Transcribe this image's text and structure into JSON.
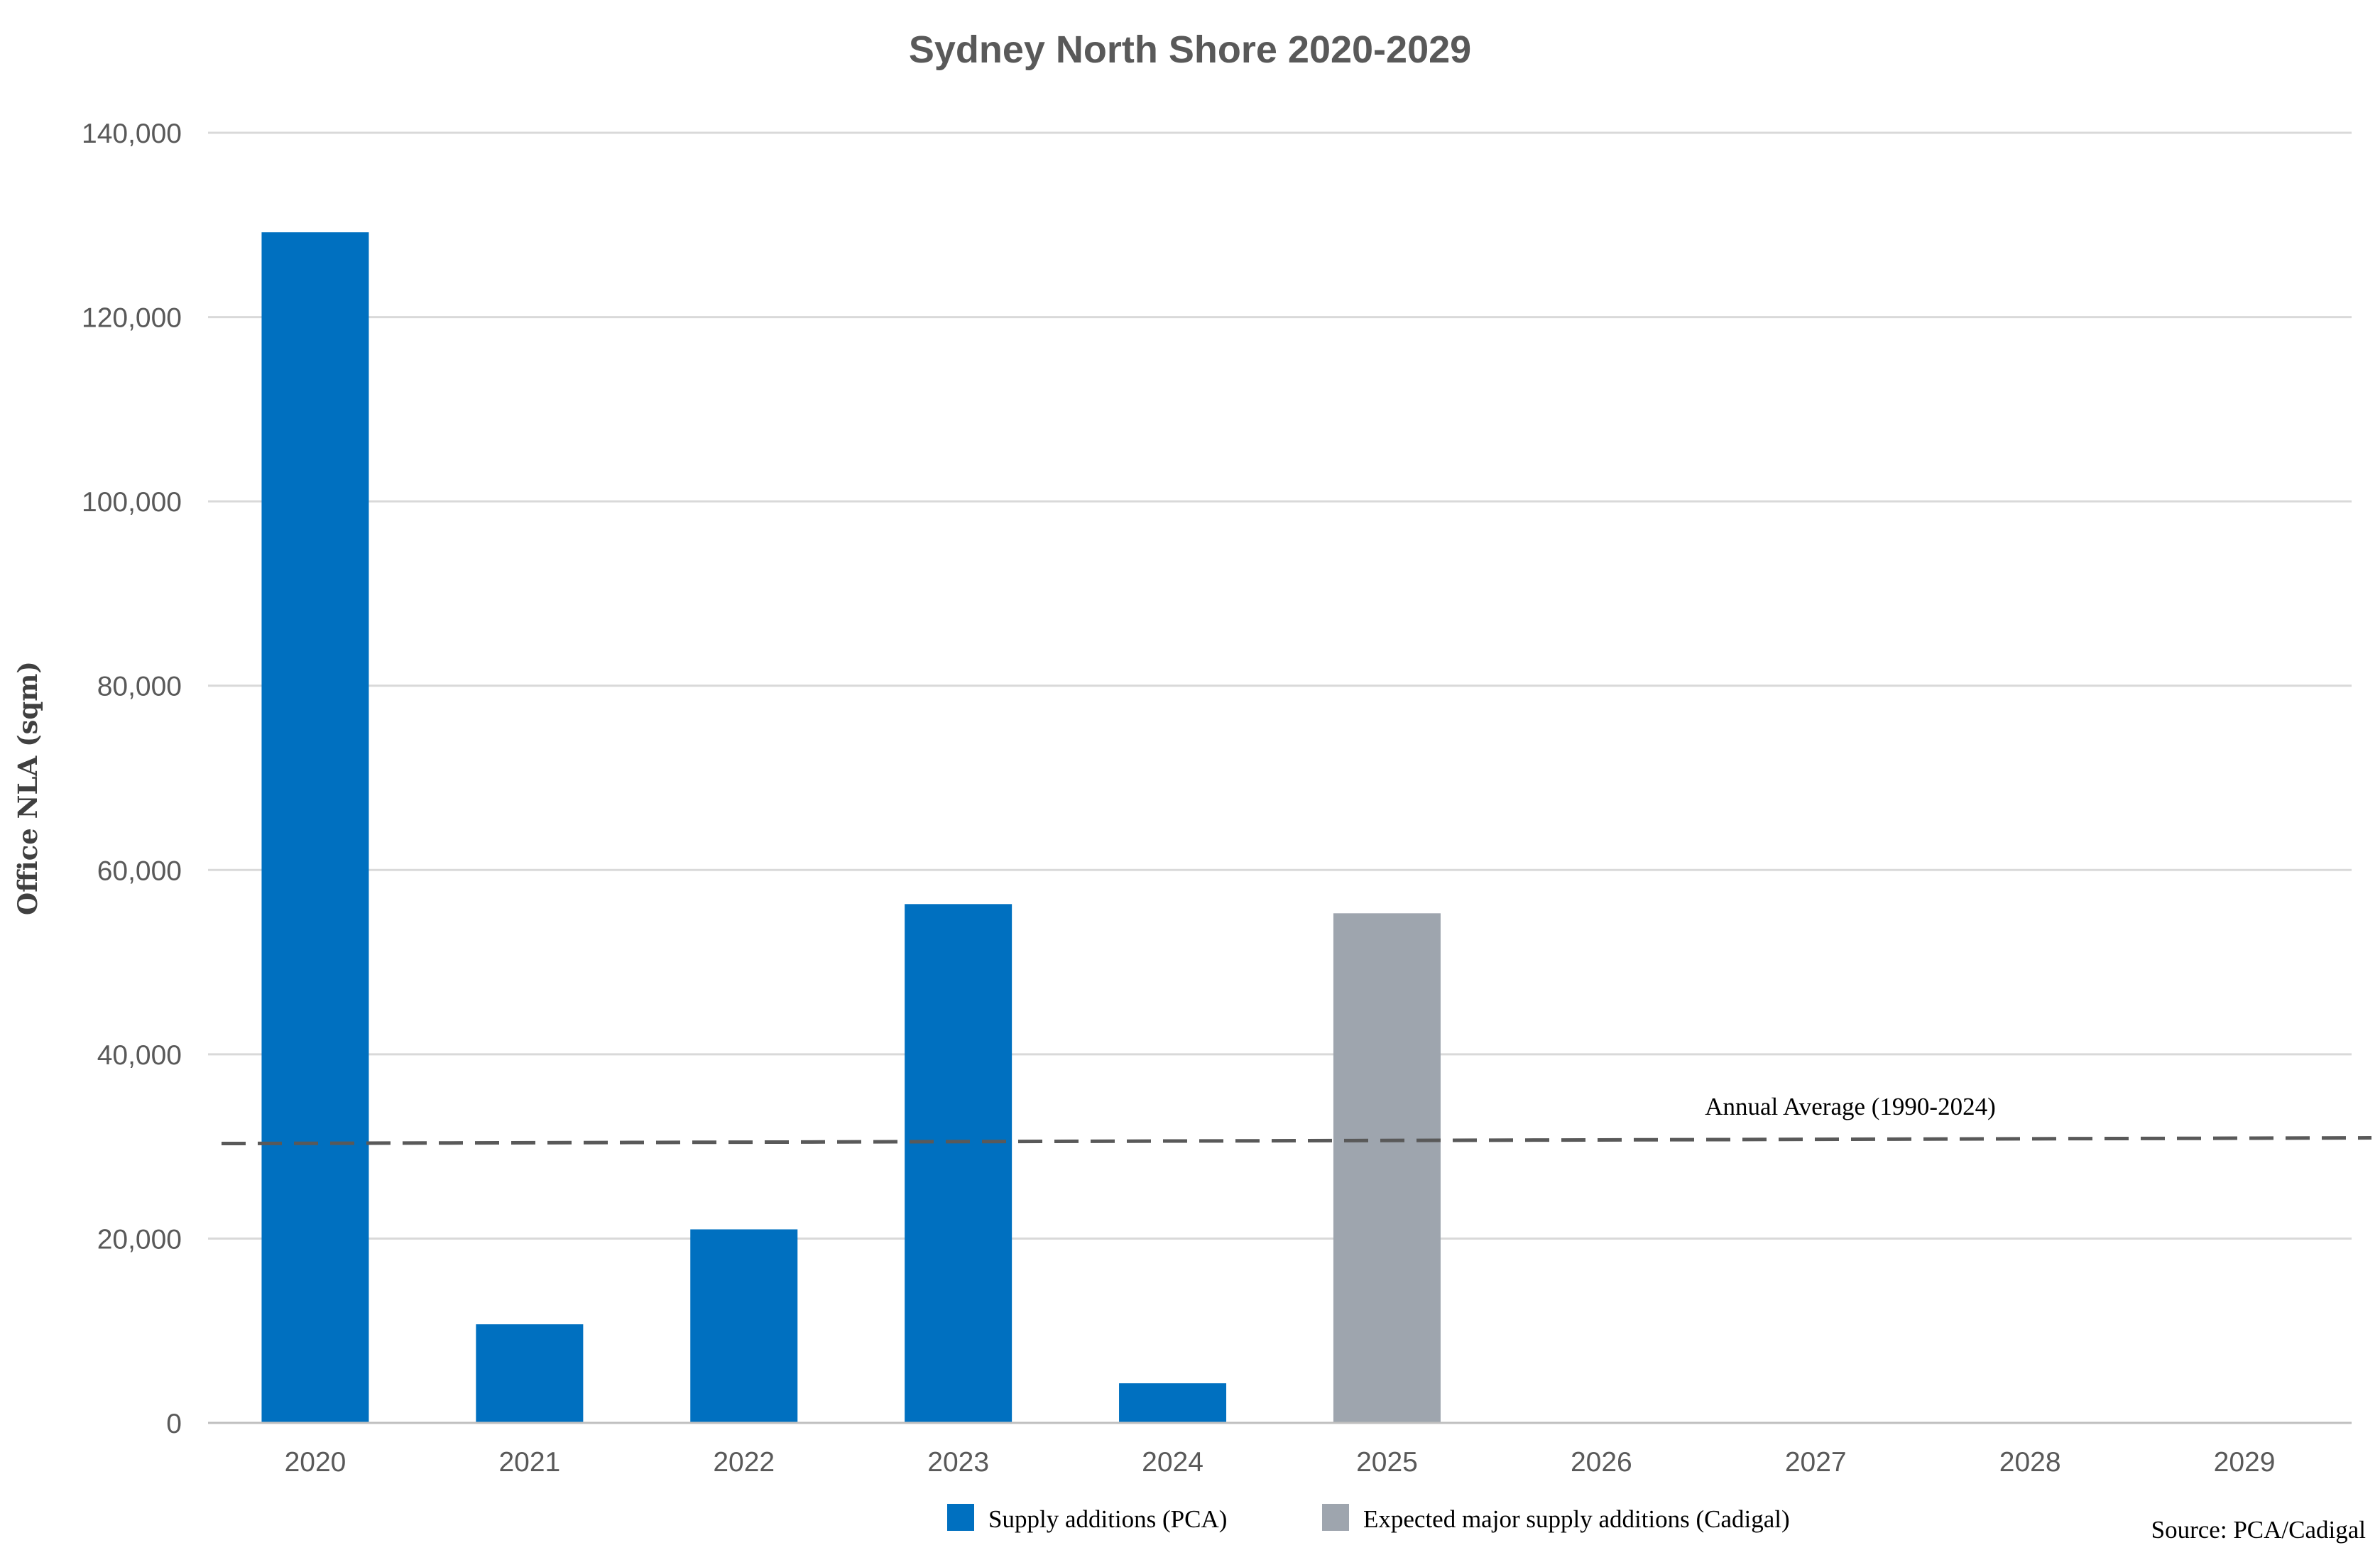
{
  "chart_data": {
    "type": "bar",
    "title": "Sydney North Shore 2020-2029",
    "xlabel": "",
    "ylabel": "Office NLA (sqm)",
    "categories": [
      "2020",
      "2021",
      "2022",
      "2023",
      "2024",
      "2025",
      "2026",
      "2027",
      "2028",
      "2029"
    ],
    "series": [
      {
        "name": "Supply additions (PCA)",
        "color": "#0070C0",
        "values": [
          129200,
          10700,
          21000,
          56300,
          4300,
          0,
          0,
          0,
          0,
          0
        ]
      },
      {
        "name": "Expected major supply additions (Cadigal)",
        "color": "#9EA5AE",
        "values": [
          0,
          0,
          0,
          0,
          0,
          55300,
          0,
          0,
          0,
          0
        ]
      }
    ],
    "ylim": [
      0,
      140000
    ],
    "yticks": [
      0,
      20000,
      40000,
      60000,
      80000,
      100000,
      120000,
      140000
    ],
    "ytick_labels": [
      "0",
      "20,000",
      "40,000",
      "60,000",
      "80,000",
      "100,000",
      "120,000",
      "140,000"
    ],
    "reference_line": {
      "label": "Annual Average (1990-2024)",
      "value": 30700,
      "style": "dashed",
      "color": "#595959"
    },
    "grid": true,
    "legend_position": "bottom",
    "source": "Source: PCA/Cadigal"
  }
}
